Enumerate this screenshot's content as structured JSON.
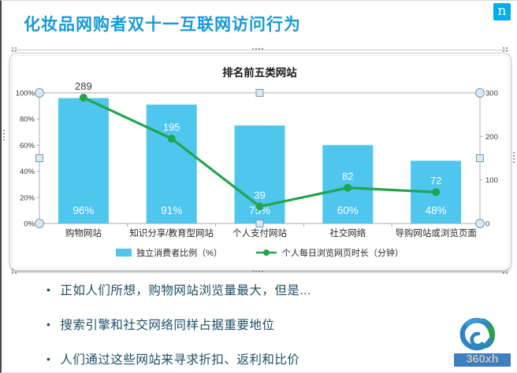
{
  "header": {
    "title": "化妆品网购者双十一互联网访问行为",
    "logo_letter": "n"
  },
  "chart_data": {
    "type": "combo_bar_line",
    "title": "排名前五类网站",
    "categories": [
      "购物网站",
      "知识分享/教育型网站",
      "个人支付网站",
      "社交网络",
      "导购网站或浏览页面"
    ],
    "series": [
      {
        "name": "独立消费者比例（%）",
        "type": "bar",
        "axis": "left",
        "color": "#4ec6ee",
        "values": [
          96,
          91,
          75,
          60,
          48
        ],
        "labels": [
          "96%",
          "91%",
          "75%",
          "60%",
          "48%"
        ]
      },
      {
        "name": "个人每日浏览网页时长（分钟）",
        "type": "line",
        "axis": "right",
        "color": "#21a54d",
        "values": [
          289,
          195,
          39,
          82,
          72
        ],
        "labels": [
          "289",
          "195",
          "39",
          "82",
          "72"
        ]
      }
    ],
    "left_axis": {
      "ticks": [
        "100%",
        "80%",
        "60%",
        "40%",
        "20%",
        "0%"
      ],
      "range": [
        0,
        100
      ]
    },
    "right_axis": {
      "ticks": [
        "300",
        "200",
        "100",
        "0"
      ],
      "range": [
        0,
        300
      ]
    },
    "legend_position": "bottom",
    "grid": false
  },
  "bullets": [
    "正如人们所想，购物网站浏览量最大，但是...",
    "搜索引擎和社交网络同样占据重要地位",
    "人们通过这些网站来寻求折扣、返利和比价"
  ],
  "watermark": {
    "text": "360xh"
  },
  "colors": {
    "accent_title": "#179bd7",
    "bar": "#4ec6ee",
    "line": "#21a54d",
    "bullet_text": "#1d4e63",
    "nielsen_blue": "#00aeef",
    "watermark_bar": "#3f7fc1",
    "selection_handle_fill": "#d6eaf5",
    "selection_handle_stroke": "#7d98a6"
  }
}
